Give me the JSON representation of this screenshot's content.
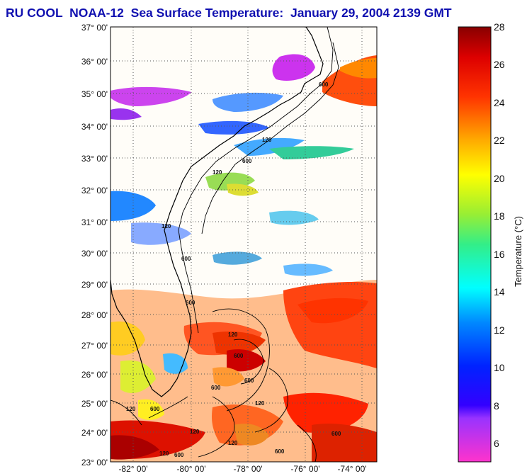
{
  "title": "RU COOL  NOAA-12  Sea Surface Temperature:  January 29, 2004 2139 GMT",
  "map": {
    "lat_labels": [
      "37° 00'",
      "36° 00'",
      "35° 00'",
      "34° 00'",
      "33° 00'",
      "32° 00'",
      "31° 00'",
      "30° 00'",
      "29° 00'",
      "28° 00'",
      "27° 00'",
      "26° 00'",
      "25° 00'",
      "24° 00'",
      "23° 00'"
    ],
    "lon_labels": [
      "-82° 00'",
      "-80° 00'",
      "-78° 00'",
      "-76° 00'",
      "-74° 00'"
    ],
    "contour_labels": [
      "600",
      "120",
      "600",
      "120",
      "120",
      "600",
      "600",
      "120",
      "600",
      "600",
      "120",
      "120",
      "600",
      "120",
      "600",
      "120",
      "600",
      "120",
      "600",
      "600"
    ],
    "colors": {
      "land": "#fffdf8",
      "cloud": "#ffffff",
      "coast": "#000000",
      "grid": "#555555"
    }
  },
  "colorbar": {
    "label": "Temperature (°C)",
    "ticks": [
      "28",
      "26",
      "24",
      "22",
      "20",
      "18",
      "16",
      "14",
      "12",
      "10",
      "8",
      "6"
    ],
    "range": [
      5,
      28
    ]
  }
}
